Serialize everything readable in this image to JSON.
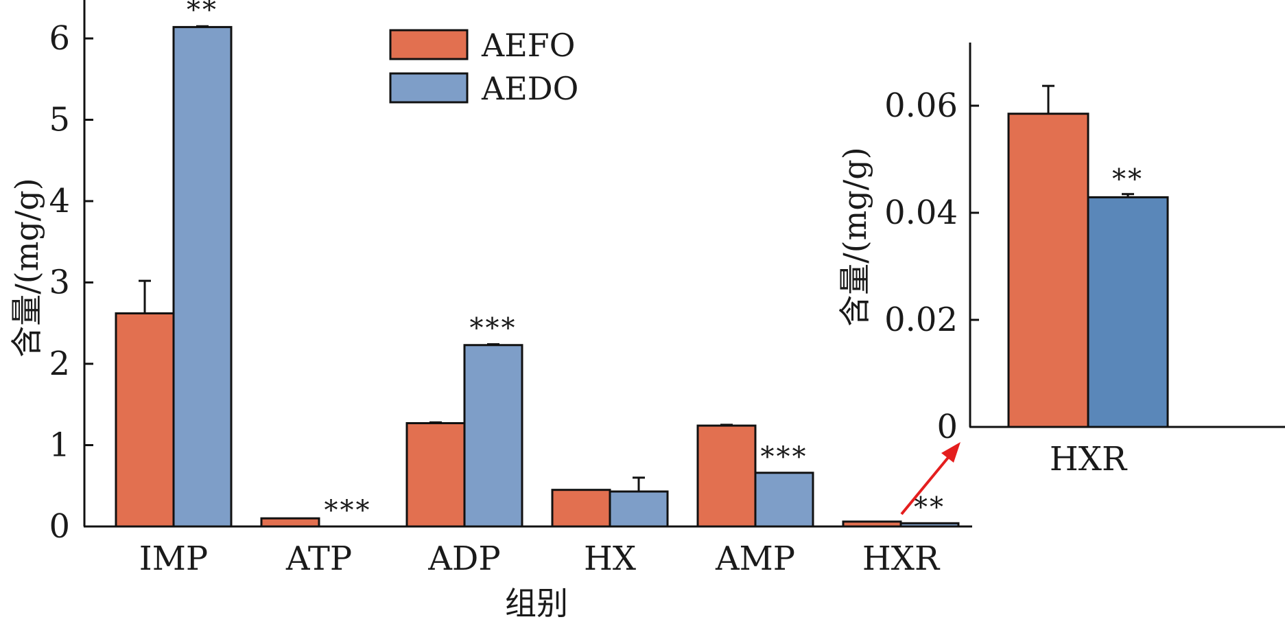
{
  "colors": {
    "AEFO": "#e27050",
    "AEDO_main": "#7e9ec8",
    "AEDO_inset": "#5a87b9",
    "axis": "#111111",
    "arrow": "#e41e1e"
  },
  "chart_data": [
    {
      "type": "bar",
      "categories": [
        "IMP",
        "ATP",
        "ADP",
        "HX",
        "AMP",
        "HXR"
      ],
      "series": [
        {
          "name": "AEFO",
          "values": [
            2.62,
            0.1,
            1.27,
            0.45,
            1.24,
            0.06
          ],
          "errors": [
            0.4,
            0,
            0.01,
            0,
            0.01,
            0
          ]
        },
        {
          "name": "AEDO",
          "values": [
            6.14,
            0,
            2.23,
            0.43,
            0.66,
            0.04
          ],
          "errors": [
            0.01,
            0,
            0.01,
            0.17,
            0,
            0
          ]
        }
      ],
      "significance": [
        "**",
        "***",
        "***",
        "",
        "***",
        "**"
      ],
      "ylabel": "含量/(mg/g)",
      "xlabel": "组别",
      "ylim": [
        0,
        6.5
      ],
      "yticks": [
        "0",
        "1",
        "2",
        "3",
        "4",
        "5",
        "6"
      ],
      "legend": [
        "AEFO",
        "AEDO"
      ],
      "legend_position": "top-center",
      "grid": false
    },
    {
      "type": "bar",
      "categories": [
        "HXR"
      ],
      "series": [
        {
          "name": "AEFO",
          "values": [
            0.0585
          ],
          "errors": [
            0.0052
          ]
        },
        {
          "name": "AEDO",
          "values": [
            0.0429
          ],
          "errors": [
            0.0006
          ]
        }
      ],
      "significance": [
        "**"
      ],
      "ylabel": "含量/(mg/g)",
      "ylim": [
        0,
        0.07
      ],
      "yticks": [
        "0",
        "0.02",
        "0.04",
        "0.06"
      ],
      "yticks_values": [
        0,
        0.02,
        0.04,
        0.06
      ],
      "grid": false
    }
  ]
}
